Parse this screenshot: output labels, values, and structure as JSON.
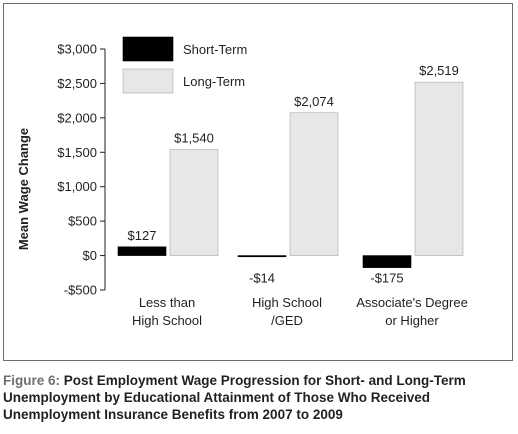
{
  "caption": {
    "lead": "Figure 6:",
    "text": "Post Employment Wage Progression for Short- and Long-Term Unemployment by Educational Attainment of Those Who Received Unemployment Insurance Benefits from 2007 to 2009"
  },
  "chart_data": {
    "type": "bar",
    "categories": [
      [
        "Less than",
        "High School"
      ],
      [
        "High School",
        "/GED"
      ],
      [
        "Associate's Degree",
        "or Higher"
      ]
    ],
    "series": [
      {
        "name": "Short-Term",
        "color": "#000000",
        "values": [
          127,
          -14,
          -175
        ],
        "labels": [
          "$127",
          "-$14",
          "-$175"
        ]
      },
      {
        "name": "Long-Term",
        "color": "#e6e7e8",
        "values": [
          1540,
          2074,
          2519
        ],
        "labels": [
          "$1,540",
          "$2,074",
          "$2,519"
        ]
      }
    ],
    "ylabel": "Mean Wage Change",
    "xlabel": "",
    "ylim": [
      -500,
      3000
    ],
    "yticks": [
      {
        "value": 3000,
        "label": "$3,000"
      },
      {
        "value": 2500,
        "label": "$2,500"
      },
      {
        "value": 2000,
        "label": "$2,000"
      },
      {
        "value": 1500,
        "label": "$1,500"
      },
      {
        "value": 1000,
        "label": "$1,000"
      },
      {
        "value": 500,
        "label": "$500"
      },
      {
        "value": 0,
        "label": "$0"
      },
      {
        "value": -500,
        "label": "-$500"
      }
    ],
    "legend_position": "top-left",
    "grid": false
  }
}
